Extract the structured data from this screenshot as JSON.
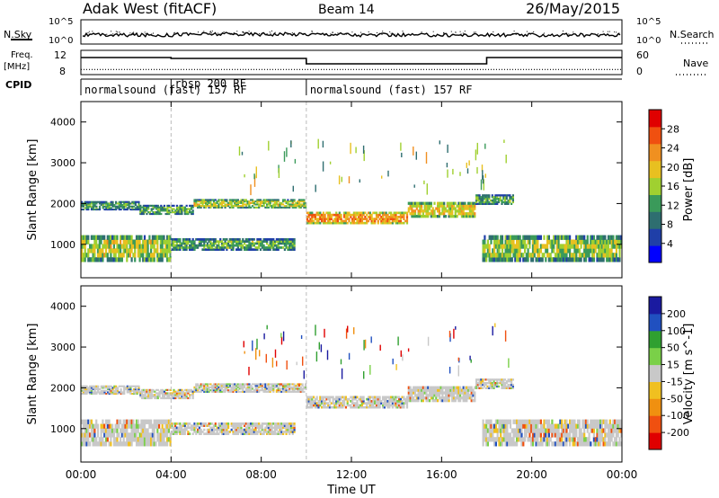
{
  "header": {
    "station": "Adak West (fitACF)",
    "beam": "Beam 14",
    "date": "26/May/2015"
  },
  "strips": {
    "nsky_label": "N.Sky",
    "nsky_ticks": [
      "10^5",
      "10^0"
    ],
    "nsearch_label": "N.Search",
    "nsearch_ticks": [
      "10^5",
      "10^0"
    ],
    "freq_label_1": "Freq.",
    "freq_label_2": "[MHz]",
    "freq_ticks": [
      "12",
      "8"
    ],
    "nave_label": "Nave",
    "nave_ticks": [
      "60",
      "0"
    ],
    "cpid_label": "CPID",
    "cpid_segments": [
      {
        "label": "normalsound (fast) 157 RF",
        "start_hr": 0,
        "end_hr": 4
      },
      {
        "label": "rbsp 200 RF",
        "start_hr": 4,
        "end_hr": 10
      },
      {
        "label": "normalsound (fast) 157 RF",
        "start_hr": 10,
        "end_hr": 24
      }
    ]
  },
  "axes": {
    "ylabel": "Slant Range [km]",
    "xlabel": "Time UT",
    "y_ticks": [
      "1000",
      "2000",
      "3000",
      "4000"
    ],
    "x_ticks": [
      "00:00",
      "04:00",
      "08:00",
      "12:00",
      "16:00",
      "20:00",
      "00:00"
    ]
  },
  "power_colorbar": {
    "label": "Power [dB]",
    "ticks": [
      "4",
      "8",
      "12",
      "16",
      "20",
      "24",
      "28"
    ],
    "colors": [
      "#0000ff",
      "#1f3fa8",
      "#2e6e70",
      "#3a9a5a",
      "#a0d030",
      "#e8c020",
      "#f09020",
      "#f05010",
      "#e00000"
    ]
  },
  "velocity_colorbar": {
    "label": "Velocity [m s^-1]",
    "ticks": [
      "200",
      "100",
      "50",
      "15",
      "-15",
      "-50",
      "-100",
      "-200"
    ],
    "colors": [
      "#1a1aa0",
      "#2050c0",
      "#30a030",
      "#7ad048",
      "#c8c8c8",
      "#f0c020",
      "#f09010",
      "#f05010",
      "#e00000"
    ]
  },
  "chart_data": {
    "type": "heatmap",
    "title": "Adak West (fitACF)  Beam 14  26/May/2015",
    "xlabel": "Time UT",
    "ylabel": "Slant Range [km]",
    "xlim": [
      "00:00",
      "24:00"
    ],
    "ylim": [
      180,
      4500
    ],
    "panels": [
      {
        "name": "Power",
        "unit": "dB",
        "range": [
          0,
          30
        ]
      },
      {
        "name": "Velocity",
        "unit": "m s^-1",
        "range": [
          -250,
          250
        ]
      }
    ],
    "frequency_MHz": [
      {
        "from": "00:00",
        "to": "04:00",
        "value": 11.2
      },
      {
        "from": "04:00",
        "to": "10:00",
        "value": 11.0
      },
      {
        "from": "10:00",
        "to": "18:00",
        "value": 9.8
      },
      {
        "from": "18:00",
        "to": "24:00",
        "value": 11.2
      }
    ],
    "nave": [
      {
        "from": "00:00",
        "to": "24:00",
        "value": 8
      }
    ],
    "bands": [
      {
        "from_hr": 0.0,
        "to_hr": 2.6,
        "center_km": 1950,
        "width_km": 220,
        "power_dB": 11
      },
      {
        "from_hr": 2.6,
        "to_hr": 5.0,
        "center_km": 1850,
        "width_km": 240,
        "power_dB": 12
      },
      {
        "from_hr": 5.0,
        "to_hr": 10.0,
        "center_km": 2000,
        "width_km": 220,
        "power_dB": 16
      },
      {
        "from_hr": 10.0,
        "to_hr": 14.5,
        "center_km": 1650,
        "width_km": 300,
        "power_dB": 22
      },
      {
        "from_hr": 14.5,
        "to_hr": 17.5,
        "center_km": 1850,
        "width_km": 380,
        "power_dB": 18
      },
      {
        "from_hr": 17.5,
        "to_hr": 19.2,
        "center_km": 2100,
        "width_km": 250,
        "power_dB": 12
      },
      {
        "from_hr": 0.0,
        "to_hr": 4.0,
        "center_km": 900,
        "width_km": 650,
        "power_dB": 16
      },
      {
        "from_hr": 4.0,
        "to_hr": 9.5,
        "center_km": 1000,
        "width_km": 300,
        "power_dB": 12
      },
      {
        "from_hr": 17.8,
        "to_hr": 24.0,
        "center_km": 900,
        "width_km": 650,
        "power_dB": 15
      }
    ]
  }
}
